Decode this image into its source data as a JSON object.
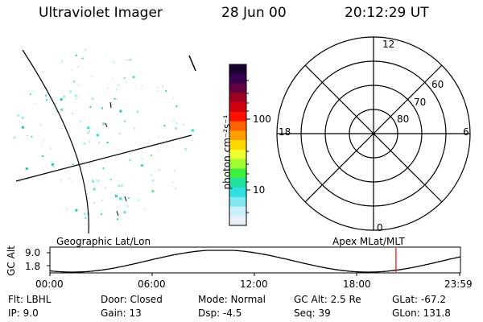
{
  "header": {
    "instrument": "Ultraviolet Imager",
    "date": "28 Jun 00",
    "time": "20:12:29 UT"
  },
  "colorbar": {
    "unit_label": "photon cm⁻²s⁻¹",
    "ticks": [
      "100",
      "10"
    ],
    "colors": [
      "#1a0030",
      "#3a0050",
      "#600040",
      "#a00020",
      "#d00010",
      "#ff1000",
      "#ff6000",
      "#ffa000",
      "#ffd800",
      "#f0ff30",
      "#a0ff30",
      "#40f040",
      "#20e0a0",
      "#30e0e0",
      "#80e8f0",
      "#c8f0f8",
      "#e8f0f8"
    ]
  },
  "polar_plot": {
    "clock_labels": [
      "12",
      "18",
      "6",
      "0"
    ],
    "lat_labels": [
      "60",
      "70",
      "80"
    ]
  },
  "timeline": {
    "left_label": "Geographic Lat/Lon",
    "right_label": "Apex MLat/MLT",
    "yaxis_label": "GC Alt",
    "y_ticks": [
      "9.0",
      "1.8"
    ],
    "x_ticks": [
      "00:00",
      "06:00",
      "12:00",
      "18:00",
      "23:59"
    ],
    "marker_color": "#ff0000",
    "marker_time_fraction": 0.843
  },
  "info": {
    "flt": "Flt: LBHL",
    "ip": "IP:  9.0",
    "door": "Door: Closed",
    "gain": "Gain: 13",
    "mode": "Mode: Normal",
    "dsp": "Dsp:    -4.5",
    "gcalt": "GC Alt: 2.5 Re",
    "seq": "Seq: 39",
    "glat": "GLat: -67.2",
    "glon": "GLon: 131.8"
  }
}
